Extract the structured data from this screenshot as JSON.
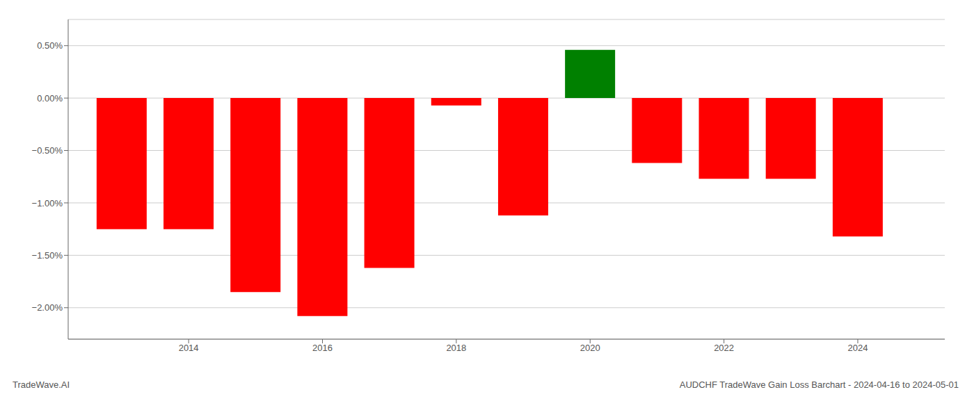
{
  "chart_data": {
    "type": "bar",
    "title": "AUDCHF TradeWave Gain Loss Barchart - 2024-04-16 to 2024-05-01",
    "annotations": [
      "TradeWave.AI"
    ],
    "x": [
      2013,
      2014,
      2015,
      2016,
      2017,
      2018,
      2019,
      2020,
      2021,
      2022,
      2023,
      2024
    ],
    "values": [
      -1.25,
      -1.25,
      -1.85,
      -2.08,
      -1.62,
      -0.07,
      -1.12,
      0.46,
      -0.62,
      -0.77,
      -0.77,
      -1.32
    ],
    "colors": [
      "#ff0000",
      "#ff0000",
      "#ff0000",
      "#ff0000",
      "#ff0000",
      "#ff0000",
      "#ff0000",
      "#008000",
      "#ff0000",
      "#ff0000",
      "#ff0000",
      "#ff0000"
    ],
    "xlim": [
      2012.2,
      2025.3
    ],
    "xticks": [
      2014,
      2016,
      2018,
      2020,
      2022,
      2024
    ],
    "ylim": [
      -2.3,
      0.75
    ],
    "yticks": [
      {
        "value": -2.0,
        "label": "−2.00%"
      },
      {
        "value": -1.5,
        "label": "−1.50%"
      },
      {
        "value": -1.0,
        "label": "−1.00%"
      },
      {
        "value": -0.5,
        "label": "−0.50%"
      },
      {
        "value": 0.0,
        "label": "0.00%"
      },
      {
        "value": 0.5,
        "label": "0.50%"
      }
    ],
    "grid": true
  }
}
